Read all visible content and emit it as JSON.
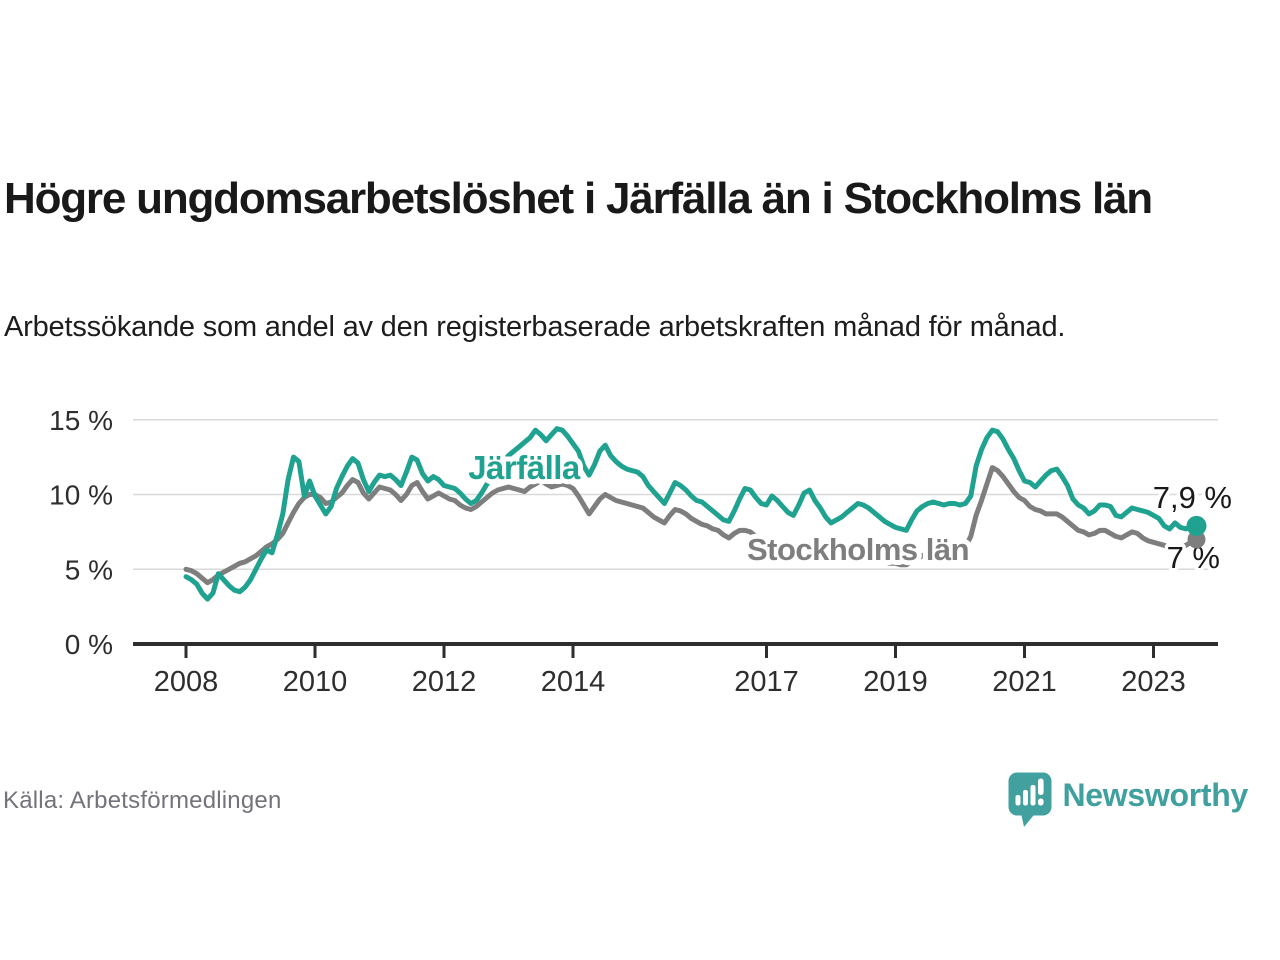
{
  "header": {
    "title": "Högre ungdomsarbetslöshet i Järfälla än i Stockholms län",
    "subtitle": "Arbetssökande som andel av den registerbaserade arbetskraften månad för månad."
  },
  "footer": {
    "source": "Källa: Arbetsförmedlingen",
    "brand": "Newsworthy"
  },
  "colors": {
    "jarfalla_line": "#20a291",
    "stockholm_line": "#7e7e7e",
    "brand_teal": "#42a19f",
    "axis": "#2e2e2e",
    "gridline": "#d9d9d9",
    "text_dark": "#191919",
    "source_gray": "#73737b"
  },
  "chart_data": {
    "type": "line",
    "title": "Högre ungdomsarbetslöshet i Järfälla än i Stockholms län",
    "subtitle": "Arbetssökande som andel av den registerbaserade arbetskraften månad för månad.",
    "unit": "%",
    "x_unit": "month",
    "x_start": "2008-01",
    "x_end": "2023-09",
    "x_ticks": [
      2008,
      2010,
      2012,
      2014,
      2017,
      2019,
      2021,
      2023
    ],
    "y_ticks": [
      {
        "value": 0,
        "label": "0 %"
      },
      {
        "value": 5,
        "label": "5 %"
      },
      {
        "value": 10,
        "label": "10 %"
      },
      {
        "value": 15,
        "label": "15 %"
      }
    ],
    "ylim": [
      0,
      15.8
    ],
    "grid": "horizontal",
    "legend_position": "inline-labels",
    "series": [
      {
        "id": "jarfalla",
        "name": "Järfälla",
        "color": "#20a291",
        "end_label": "7,9 %",
        "end_value": 7.9,
        "values": [
          4.5,
          4.3,
          4.0,
          3.4,
          3.0,
          3.4,
          4.7,
          4.3,
          3.9,
          3.6,
          3.5,
          3.8,
          4.3,
          5.0,
          5.7,
          6.3,
          6.1,
          7.3,
          8.7,
          11.0,
          12.5,
          12.2,
          9.9,
          10.9,
          9.9,
          9.3,
          8.7,
          9.2,
          10.4,
          11.2,
          11.9,
          12.4,
          12.1,
          11.0,
          10.2,
          10.8,
          11.3,
          11.2,
          11.3,
          11.0,
          10.6,
          11.5,
          12.5,
          12.3,
          11.4,
          10.9,
          11.2,
          11.0,
          10.6,
          10.5,
          10.4,
          10.1,
          9.7,
          9.4,
          9.6,
          10.1,
          10.7,
          11.3,
          11.8,
          12.2,
          12.6,
          12.9,
          13.2,
          13.5,
          13.8,
          14.3,
          14.0,
          13.6,
          14.0,
          14.4,
          14.3,
          13.9,
          13.4,
          12.9,
          11.9,
          11.3,
          12.0,
          12.9,
          13.3,
          12.6,
          12.2,
          11.9,
          11.7,
          11.6,
          11.5,
          11.2,
          10.6,
          10.2,
          9.8,
          9.4,
          10.1,
          10.8,
          10.6,
          10.3,
          9.9,
          9.6,
          9.5,
          9.2,
          8.9,
          8.6,
          8.3,
          8.2,
          8.9,
          9.7,
          10.4,
          10.3,
          9.8,
          9.4,
          9.3,
          9.9,
          9.6,
          9.2,
          8.8,
          8.6,
          9.3,
          10.1,
          10.3,
          9.6,
          9.1,
          8.5,
          8.1,
          8.3,
          8.5,
          8.8,
          9.1,
          9.4,
          9.3,
          9.1,
          8.8,
          8.5,
          8.2,
          8.0,
          7.8,
          7.7,
          7.6,
          8.3,
          8.9,
          9.2,
          9.4,
          9.5,
          9.4,
          9.3,
          9.4,
          9.4,
          9.3,
          9.4,
          9.9,
          11.9,
          13.0,
          13.8,
          14.3,
          14.2,
          13.7,
          13.0,
          12.4,
          11.6,
          10.9,
          10.8,
          10.5,
          10.9,
          11.3,
          11.6,
          11.7,
          11.2,
          10.6,
          9.7,
          9.3,
          9.1,
          8.7,
          8.9,
          9.3,
          9.3,
          9.2,
          8.6,
          8.5,
          8.8,
          9.1,
          9.0,
          8.9,
          8.8,
          8.6,
          8.4,
          7.9,
          7.7,
          8.1,
          7.8,
          7.7,
          7.8,
          7.9
        ]
      },
      {
        "id": "stockholm",
        "name": "Stockholms län",
        "color": "#7e7e7e",
        "end_label": "7 %",
        "end_value": 7.0,
        "values": [
          5.0,
          4.9,
          4.7,
          4.4,
          4.1,
          4.3,
          4.6,
          4.8,
          5.0,
          5.2,
          5.4,
          5.5,
          5.7,
          5.9,
          6.2,
          6.5,
          6.7,
          7.0,
          7.4,
          8.1,
          8.8,
          9.4,
          9.8,
          10.0,
          10.0,
          9.8,
          9.4,
          9.5,
          9.8,
          10.1,
          10.6,
          11.0,
          10.8,
          10.1,
          9.7,
          10.1,
          10.5,
          10.4,
          10.3,
          10.0,
          9.6,
          10.0,
          10.6,
          10.8,
          10.2,
          9.7,
          9.9,
          10.1,
          9.9,
          9.7,
          9.6,
          9.3,
          9.1,
          9.0,
          9.2,
          9.5,
          9.8,
          10.1,
          10.3,
          10.4,
          10.5,
          10.4,
          10.3,
          10.2,
          10.5,
          10.7,
          10.9,
          10.7,
          10.5,
          10.6,
          10.7,
          10.6,
          10.4,
          9.9,
          9.3,
          8.7,
          9.2,
          9.7,
          10.0,
          9.8,
          9.6,
          9.5,
          9.4,
          9.3,
          9.2,
          9.1,
          8.8,
          8.5,
          8.3,
          8.1,
          8.6,
          9.0,
          8.9,
          8.7,
          8.4,
          8.2,
          8.0,
          7.9,
          7.7,
          7.6,
          7.3,
          7.1,
          7.4,
          7.6,
          7.6,
          7.5,
          7.2,
          6.9,
          6.8,
          6.7,
          6.6,
          6.4,
          6.3,
          6.2,
          6.4,
          6.6,
          6.5,
          6.4,
          6.2,
          6.1,
          6.0,
          5.9,
          5.8,
          5.7,
          5.6,
          5.5,
          5.7,
          5.8,
          5.7,
          5.6,
          5.5,
          5.4,
          5.4,
          5.3,
          5.3,
          5.5,
          5.7,
          5.9,
          6.1,
          6.2,
          6.2,
          6.2,
          6.3,
          6.3,
          6.4,
          6.5,
          7.2,
          8.6,
          9.6,
          10.7,
          11.8,
          11.6,
          11.2,
          10.7,
          10.2,
          9.8,
          9.6,
          9.2,
          9.0,
          8.9,
          8.7,
          8.7,
          8.7,
          8.5,
          8.2,
          7.9,
          7.6,
          7.5,
          7.3,
          7.4,
          7.6,
          7.6,
          7.4,
          7.2,
          7.1,
          7.3,
          7.5,
          7.4,
          7.1,
          6.9,
          6.8,
          6.7,
          6.6,
          6.4,
          6.3,
          6.4,
          6.6,
          6.8,
          7.0
        ]
      }
    ]
  }
}
